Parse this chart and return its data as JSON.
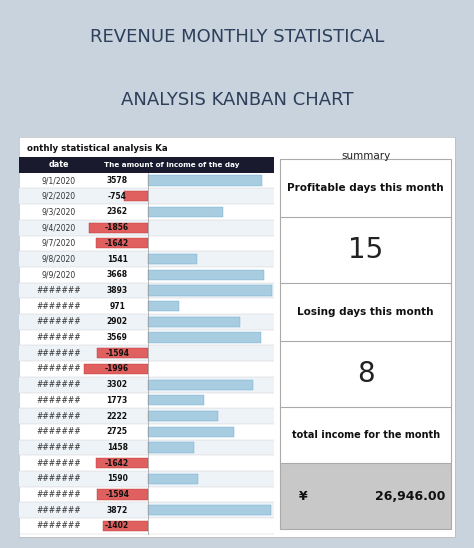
{
  "title_line1": "REVENUE MONTHLY STATISTICAL",
  "title_line2": "ANALYSIS KANBAN CHART",
  "title_color": "#2d3f5a",
  "bg_color": "#c8d3de",
  "card_bg": "#ffffff",
  "subtitle": "onthly statistical analysis Ka",
  "header_labels": [
    "date",
    "The amount of income of the day"
  ],
  "dates": [
    "9/1/2020",
    "9/2/2020",
    "9/3/2020",
    "9/4/2020",
    "9/7/2020",
    "9/8/2020",
    "9/9/2020",
    "#######",
    "#######",
    "#######",
    "#######",
    "#######",
    "#######",
    "#######",
    "#######",
    "#######",
    "#######",
    "#######",
    "#######",
    "#######",
    "#######",
    "#######",
    "#######"
  ],
  "values": [
    3578,
    -754,
    2362,
    -1856,
    -1642,
    1541,
    3668,
    3893,
    971,
    2902,
    3569,
    -1594,
    -1996,
    3302,
    1773,
    2222,
    2725,
    1458,
    -1642,
    1590,
    -1594,
    3872,
    -1402
  ],
  "summary_title": "summary",
  "profitable_label": "Profitable days this month",
  "profitable_value": "15",
  "losing_label": "Losing days this month",
  "losing_value": "8",
  "total_label": "total income for the month",
  "total_symbol": "¥",
  "total_number": "26,946.00",
  "positive_bar_color": "#a8cce0",
  "positive_bar_edge": "#6aaed6",
  "negative_bar_color": "#e06060",
  "negative_bar_edge": "#c03030",
  "header_bg": "#1a1a2e",
  "header_text": "#ffffff",
  "row_alt_bg": "#eef3f8",
  "grid_line_color": "#cccccc",
  "summary_border": "#aaaaaa",
  "gray_bg": "#c8c8c8"
}
